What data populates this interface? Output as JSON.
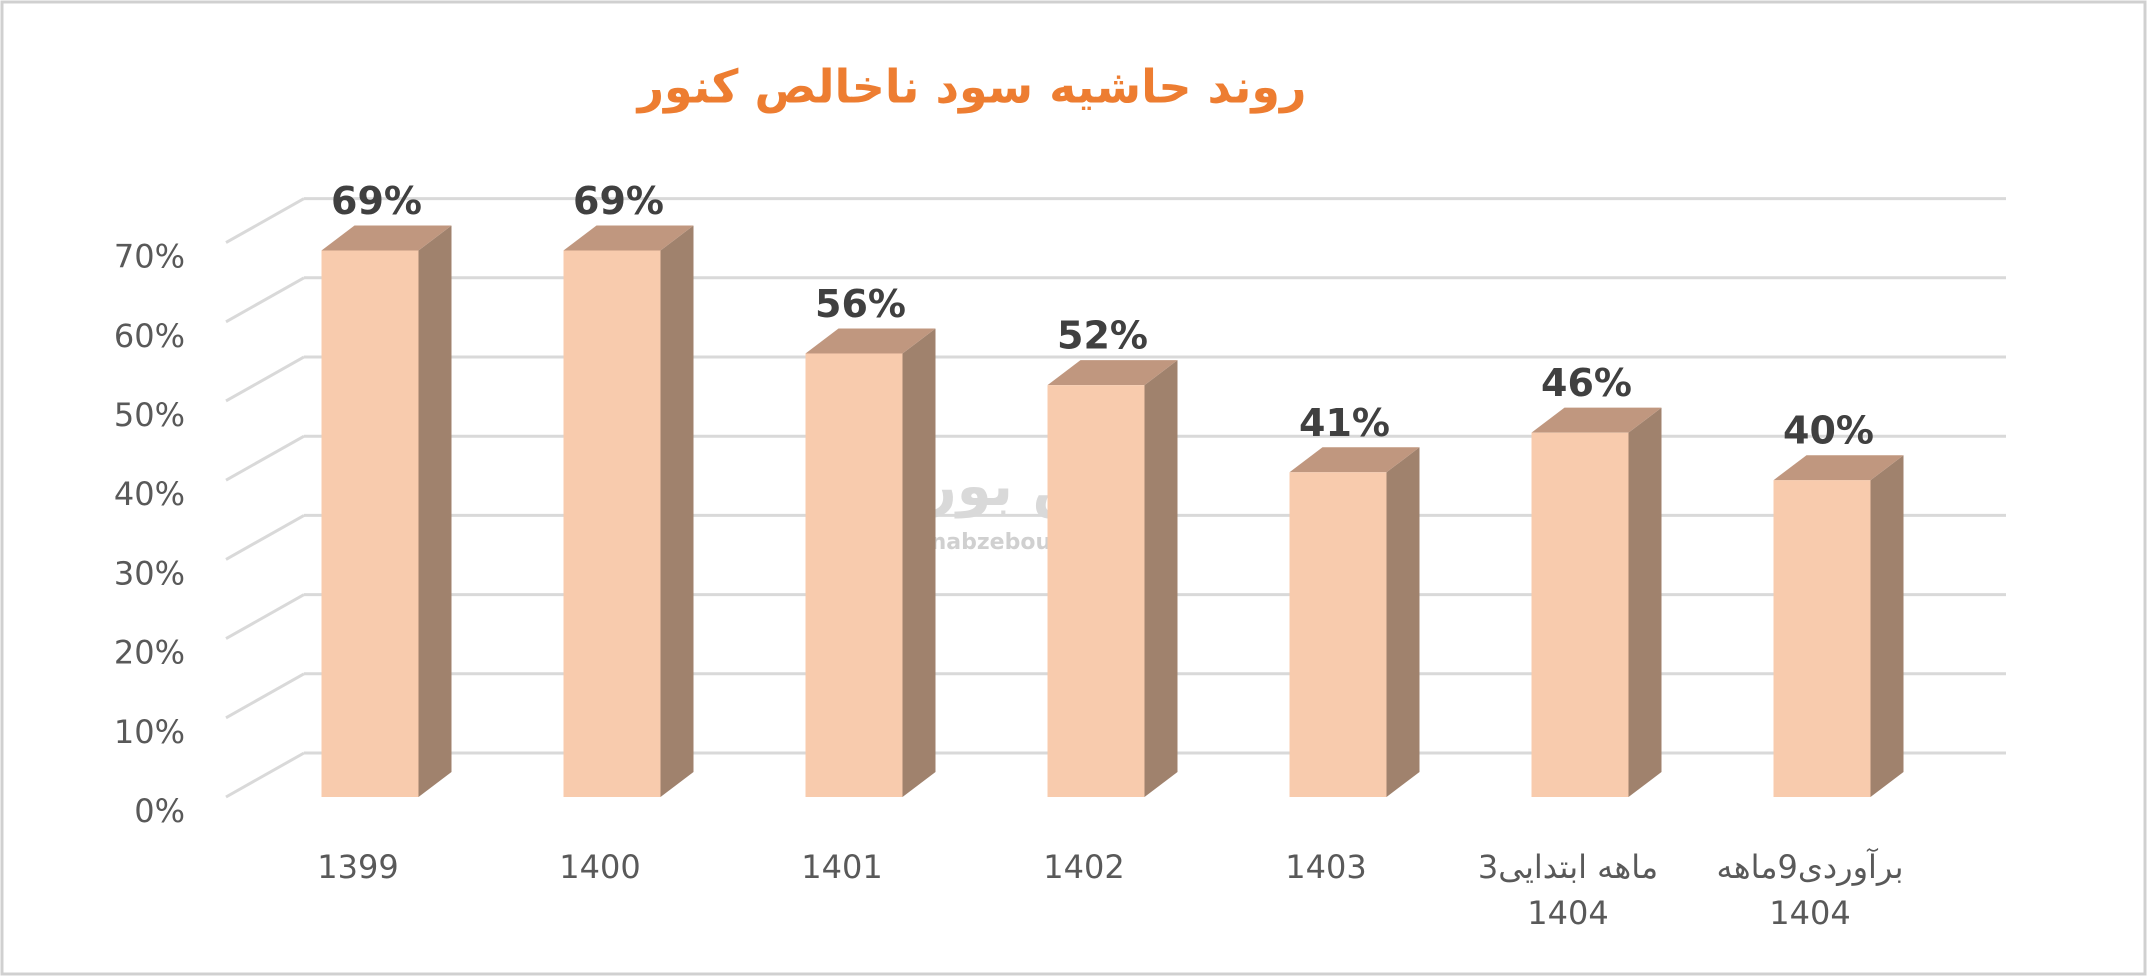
{
  "chart_data": {
    "type": "bar3d",
    "title": "روند حاشیه سود ناخالص کنور",
    "categories": [
      "1399",
      "1400",
      "1401",
      "1402",
      "1403",
      "3ماهه ابتدایی\n1404",
      "برآوردی9ماهه\n1404"
    ],
    "values": [
      69,
      69,
      56,
      52,
      41,
      46,
      40
    ],
    "value_labels": [
      "69%",
      "69%",
      "56%",
      "52%",
      "41%",
      "46%",
      "40%"
    ],
    "color": "#f8cbad",
    "ylim": [
      0,
      70
    ],
    "yticks": [
      {
        "value": 0,
        "label": "0%"
      },
      {
        "value": 10,
        "label": "10%"
      },
      {
        "value": 20,
        "label": "20%"
      },
      {
        "value": 30,
        "label": "30%"
      },
      {
        "value": 40,
        "label": "40%"
      },
      {
        "value": 50,
        "label": "50%"
      },
      {
        "value": 60,
        "label": "60%"
      },
      {
        "value": 70,
        "label": "70%"
      }
    ],
    "grid": true,
    "watermark": {
      "brand": "نبض بورس",
      "site": "nabzebourse.com"
    }
  }
}
